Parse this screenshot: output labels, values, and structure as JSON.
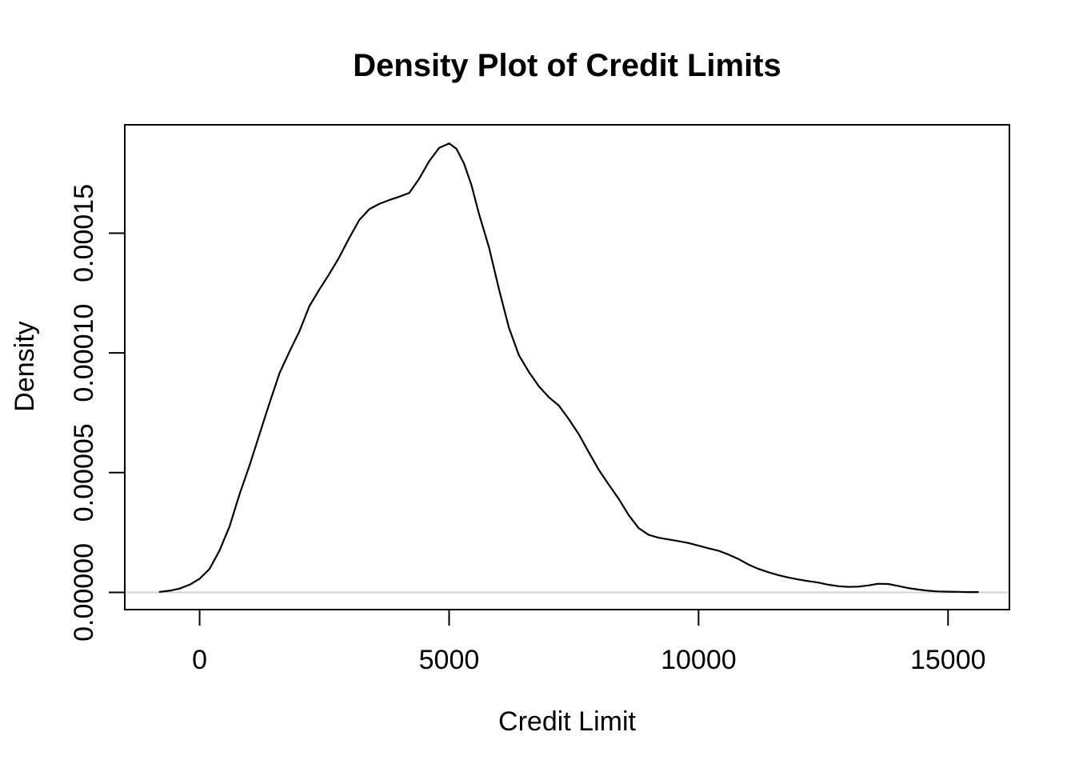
{
  "chart_data": {
    "type": "line",
    "subtype": "kernel-density",
    "title": "Density Plot of Credit Limits",
    "xlabel": "Credit Limit",
    "ylabel": "Density",
    "x_ticks": [
      0,
      5000,
      10000,
      15000
    ],
    "x_tick_labels": [
      "0",
      "5000",
      "10000",
      "15000"
    ],
    "y_ticks": [
      0,
      5e-05,
      0.0001,
      0.00015
    ],
    "y_tick_labels": [
      "0.00000",
      "0.00005",
      "0.00010",
      "0.00015"
    ],
    "xlim": [
      -1500,
      16230
    ],
    "ylim": [
      -7.2e-06,
      0.00019525
    ],
    "grid": false,
    "legend": null,
    "colors": {
      "curve": "#000000",
      "zero_line": "#d4d4d4",
      "box": "#000000",
      "text": "#000000",
      "background": "#ffffff"
    },
    "zero_line_y": 0,
    "series": [
      {
        "name": "density",
        "points": [
          [
            -800,
            2e-07
          ],
          [
            -600,
            7e-07
          ],
          [
            -400,
            1.6e-06
          ],
          [
            -200,
            3.2e-06
          ],
          [
            0,
            5.7e-06
          ],
          [
            200,
            9.8e-06
          ],
          [
            400,
            1.75e-05
          ],
          [
            600,
            2.75e-05
          ],
          [
            800,
            4.1e-05
          ],
          [
            1000,
            5.3e-05
          ],
          [
            1200,
            6.6e-05
          ],
          [
            1400,
            7.9e-05
          ],
          [
            1600,
            9.15e-05
          ],
          [
            1800,
            0.0001005
          ],
          [
            2000,
            0.000109
          ],
          [
            2200,
            0.0001195
          ],
          [
            2400,
            0.0001265
          ],
          [
            2600,
            0.000133
          ],
          [
            2800,
            0.00014
          ],
          [
            3000,
            0.000148
          ],
          [
            3200,
            0.0001555
          ],
          [
            3400,
            0.00016
          ],
          [
            3600,
            0.0001622
          ],
          [
            3800,
            0.0001638
          ],
          [
            4000,
            0.0001652
          ],
          [
            4200,
            0.0001668
          ],
          [
            4400,
            0.0001727
          ],
          [
            4600,
            0.00018
          ],
          [
            4800,
            0.0001856
          ],
          [
            5000,
            0.0001875
          ],
          [
            5150,
            0.0001852
          ],
          [
            5300,
            0.000179
          ],
          [
            5450,
            0.00017
          ],
          [
            5600,
            0.000158
          ],
          [
            5800,
            0.000144
          ],
          [
            6000,
            0.0001265
          ],
          [
            6200,
            0.0001105
          ],
          [
            6400,
            9.9e-05
          ],
          [
            6600,
            9.2e-05
          ],
          [
            6800,
            8.6e-05
          ],
          [
            7000,
            8.15e-05
          ],
          [
            7200,
            7.8e-05
          ],
          [
            7400,
            7.23e-05
          ],
          [
            7600,
            6.6e-05
          ],
          [
            7800,
            5.85e-05
          ],
          [
            8000,
            5.12e-05
          ],
          [
            8200,
            4.5e-05
          ],
          [
            8400,
            3.9e-05
          ],
          [
            8600,
            3.23e-05
          ],
          [
            8800,
            2.68e-05
          ],
          [
            9000,
            2.4e-05
          ],
          [
            9200,
            2.28e-05
          ],
          [
            9400,
            2.21e-05
          ],
          [
            9600,
            2.14e-05
          ],
          [
            9800,
            2.06e-05
          ],
          [
            10000,
            1.95e-05
          ],
          [
            10200,
            1.84e-05
          ],
          [
            10400,
            1.74e-05
          ],
          [
            10600,
            1.58e-05
          ],
          [
            10800,
            1.39e-05
          ],
          [
            11000,
            1.16e-05
          ],
          [
            11200,
            9.8e-06
          ],
          [
            11400,
            8.4e-06
          ],
          [
            11600,
            7.2e-06
          ],
          [
            11800,
            6.2e-06
          ],
          [
            12000,
            5.4e-06
          ],
          [
            12200,
            4.7e-06
          ],
          [
            12400,
            4.1e-06
          ],
          [
            12600,
            3.2e-06
          ],
          [
            12800,
            2.6e-06
          ],
          [
            13000,
            2.3e-06
          ],
          [
            13200,
            2.4e-06
          ],
          [
            13400,
            2.9e-06
          ],
          [
            13600,
            3.6e-06
          ],
          [
            13800,
            3.5e-06
          ],
          [
            14000,
            2.7e-06
          ],
          [
            14200,
            1.8e-06
          ],
          [
            14400,
            1.2e-06
          ],
          [
            14600,
            7e-07
          ],
          [
            14800,
            4e-07
          ],
          [
            15000,
            3e-07
          ],
          [
            15200,
            2e-07
          ],
          [
            15400,
            1e-07
          ],
          [
            15600,
            1e-07
          ]
        ]
      }
    ]
  }
}
